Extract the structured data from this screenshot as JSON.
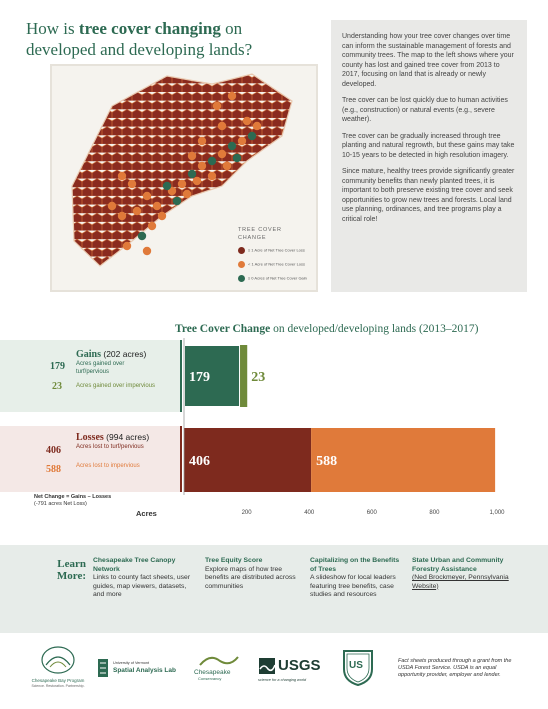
{
  "title": {
    "prefix": "How is ",
    "bold": "tree cover changing",
    "suffix": " on",
    "line2": "developed and developing lands?"
  },
  "map": {
    "legend_title": "TREE COVER",
    "legend_title2": "CHANGE",
    "legend": [
      {
        "label": "≥ 1 Acre of Net Tree Cover Loss",
        "color": "#7e2a1e",
        "icon": "dark-red-dot"
      },
      {
        "label": "< 1 Acre of Net Tree Cover Loss",
        "color": "#e07a3a",
        "icon": "orange-dot"
      },
      {
        "label": "≥ 0 Acres of Net Tree Cover Gain",
        "color": "#2d6a52",
        "icon": "green-dot"
      }
    ]
  },
  "info": {
    "p1": "Understanding how your tree cover changes over time can inform the sustainable management of forests and community trees. The map to the left shows where your county has lost and gained tree cover from 2013 to 2017, focusing on land that is already or newly developed.",
    "p2": "Tree cover can be lost quickly due to human activities (e.g., construction) or natural events (e.g., severe weather).",
    "p3": "Tree cover can be gradually increased through tree planting and natural regrowth, but these gains may take 10-15 years to be detected in high resolution imagery.",
    "p4": "Since mature, healthy trees provide significantly greater community benefits than newly planted trees, it is important to both preserve existing tree cover and seek opportunities to grow new trees and forests. Local land use planning, ordinances, and tree programs play a critical role!"
  },
  "chart_title": {
    "bold": "Tree Cover Change",
    "rest": " on developed/developing lands (2013–2017)"
  },
  "gains": {
    "head_bold": "Gains",
    "head_rest": " (202 acres)",
    "row1_num": "179",
    "row1_label": "Acres gained over turf/pervious",
    "row2_num": "23",
    "row2_label": "Acres gained over impervious"
  },
  "losses": {
    "head_bold": "Losses",
    "head_rest": " (994 acres)",
    "row1_num": "406",
    "row1_label": "Acres lost to turf/pervious",
    "row2_num": "588",
    "row2_label": "Acres lost to impervious"
  },
  "net": {
    "line1": "Net Change = Gains – Losses",
    "line2": "(-791 acres Net Loss)"
  },
  "axis_label": "Acres",
  "chart_data": {
    "type": "bar",
    "orientation": "horizontal",
    "stacked": true,
    "xlabel": "Acres",
    "xlim": [
      0,
      1000
    ],
    "xticks": [
      "0",
      "200",
      "400",
      "600",
      "800",
      "1,000"
    ],
    "categories": [
      "Gains",
      "Losses"
    ],
    "series": [
      {
        "name": "Acres gained over turf/pervious",
        "category": "Gains",
        "value": 179,
        "color": "#2d6a52",
        "label": "179"
      },
      {
        "name": "Acres gained over impervious",
        "category": "Gains",
        "value": 23,
        "color": "#6f8a3a",
        "label": "23"
      },
      {
        "name": "Acres lost to turf/pervious",
        "category": "Losses",
        "value": 406,
        "color": "#7e2a1e",
        "label": "406"
      },
      {
        "name": "Acres lost to impervious",
        "category": "Losses",
        "value": 588,
        "color": "#e07a3a",
        "label": "588"
      }
    ]
  },
  "learn": {
    "head1": "Learn",
    "head2": "More:",
    "items": [
      {
        "title": "Chesapeake Tree Canopy Network",
        "desc": "Links to county fact sheets, user guides, map viewers, datasets, and more"
      },
      {
        "title": "Tree Equity Score",
        "desc": "Explore maps of how tree benefits are distributed across communities"
      },
      {
        "title": "Capitalizing on the Benefits of Trees",
        "desc": "A slideshow for local leaders featuring tree benefits, case studies and resources"
      },
      {
        "title": "State Urban and Community Forestry Assistance",
        "desc": "(Ned Brockmeyer, Pennsylvania Website)"
      }
    ]
  },
  "footer": {
    "logo1": "Chesapeake Bay Program",
    "logo1_sub": "Science. Restoration. Partnership.",
    "logo2a": "University of Vermont",
    "logo2b": "Spatial Analysis Lab",
    "logo3a": "Chesapeake",
    "logo3b": "Conservancy",
    "logo4": "USGS",
    "logo4_sub": "science for a changing world",
    "logo5": "US",
    "note": "Fact sheets produced through a grant from the USDA Forest Service. USDA is an equal opportunity provider, employer and lender."
  },
  "colors": {
    "green": "#2d6a52",
    "dark_red": "#7e2a1e",
    "orange": "#e07a3a",
    "olive": "#6f8a3a"
  }
}
